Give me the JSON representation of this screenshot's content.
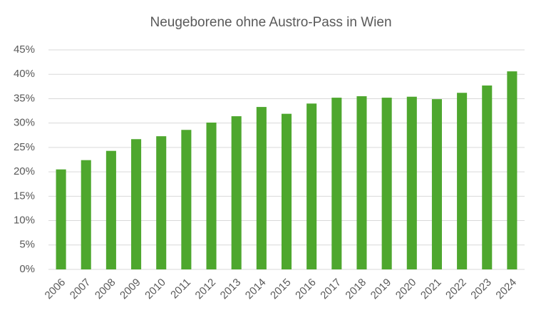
{
  "chart_data": {
    "type": "bar",
    "title": "Neugeborene ohne Austro-Pass in Wien",
    "categories": [
      "2006",
      "2007",
      "2008",
      "2009",
      "2010",
      "2011",
      "2012",
      "2013",
      "2014",
      "2015",
      "2016",
      "2017",
      "2018",
      "2019",
      "2020",
      "2021",
      "2022",
      "2023",
      "2024"
    ],
    "values": [
      20.5,
      22.4,
      24.3,
      26.7,
      27.3,
      28.6,
      30.1,
      31.4,
      33.3,
      31.9,
      34.0,
      35.2,
      35.5,
      35.2,
      35.4,
      34.9,
      36.2,
      37.7,
      40.6
    ],
    "color": "#4ea72e",
    "ylim": [
      0,
      45
    ],
    "yticks": [
      {
        "value": 0,
        "label": "0%"
      },
      {
        "value": 5,
        "label": "5%"
      },
      {
        "value": 10,
        "label": "10%"
      },
      {
        "value": 15,
        "label": "15%"
      },
      {
        "value": 20,
        "label": "20%"
      },
      {
        "value": 25,
        "label": "25%"
      },
      {
        "value": 30,
        "label": "30%"
      },
      {
        "value": 35,
        "label": "35%"
      },
      {
        "value": 40,
        "label": "40%"
      },
      {
        "value": 45,
        "label": "45%"
      }
    ],
    "grid": true
  }
}
